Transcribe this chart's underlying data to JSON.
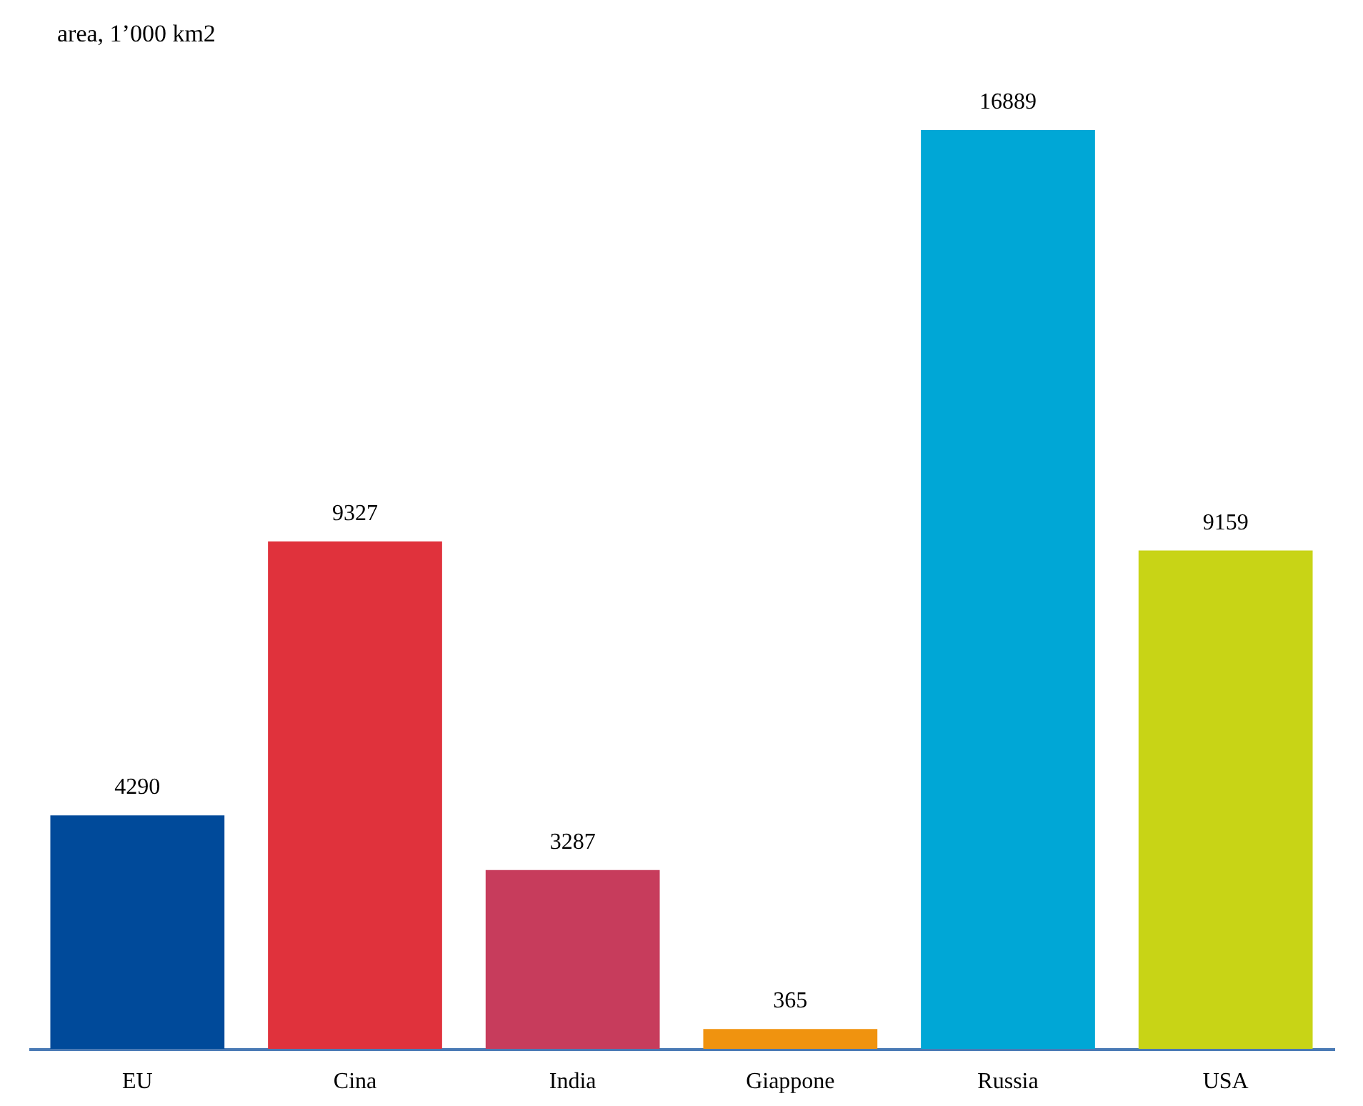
{
  "chart_data": {
    "type": "bar",
    "title": "area, 1’000 km2",
    "categories": [
      "EU",
      "Cina",
      "India",
      "Giappone",
      "Russia",
      "USA"
    ],
    "values": [
      4290,
      9327,
      3287,
      365,
      16889,
      9159
    ],
    "colors": [
      "#004a9a",
      "#e0323c",
      "#c73c5c",
      "#f0930f",
      "#00a7d6",
      "#c8d416"
    ],
    "data_labels": true,
    "grid": false,
    "tick_labels": "x"
  }
}
